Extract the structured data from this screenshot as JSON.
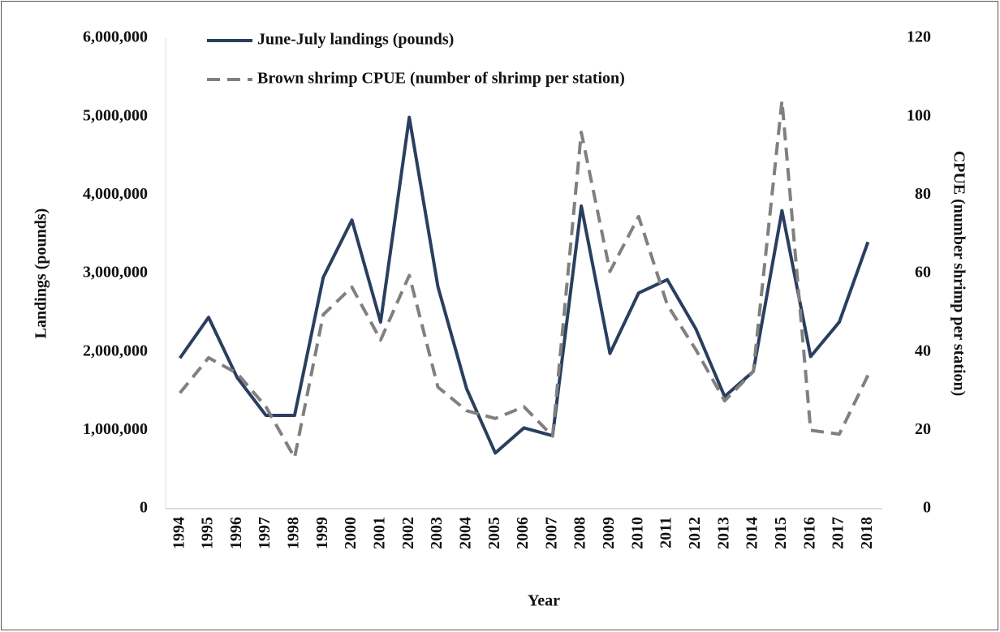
{
  "chart_data": {
    "type": "line",
    "x_label": "Year",
    "y_label": "Landings (pounds)",
    "y2_label": "CPUE (number shrimp per station)",
    "categories": [
      "1994",
      "1995",
      "1996",
      "1997",
      "1998",
      "1999",
      "2000",
      "2001",
      "2002",
      "2003",
      "2004",
      "2005",
      "2006",
      "2007",
      "2008",
      "2009",
      "2010",
      "2011",
      "2012",
      "2013",
      "2014",
      "2015",
      "2016",
      "2017",
      "2018"
    ],
    "series": [
      {
        "name": "June-July landings (pounds)",
        "color": "#2a3f5f",
        "dash": "solid",
        "values": [
          1920000,
          2440000,
          1670000,
          1190000,
          1190000,
          2950000,
          3680000,
          2380000,
          4990000,
          2830000,
          1530000,
          710000,
          1030000,
          930000,
          3860000,
          1980000,
          2750000,
          2920000,
          2290000,
          1430000,
          1750000,
          3800000,
          1940000,
          2380000,
          3400000
        ]
      },
      {
        "name": "Brown shrimp CPUE (number of shrimp per station)",
        "color": "#808080",
        "dash": "dashed",
        "axis": "y2",
        "values": [
          29.5,
          38.5,
          34.5,
          26,
          13,
          49.5,
          56.5,
          43,
          59.5,
          31,
          25,
          23,
          26,
          18.5,
          96,
          60.5,
          74.5,
          52,
          40.5,
          27.5,
          35,
          104,
          20,
          19,
          34
        ]
      }
    ],
    "ylim": [
      0,
      6000000
    ],
    "yticks": [
      0,
      {
        "value": 1000000,
        "label": "1,000,000"
      },
      {
        "value": 2000000,
        "label": "2,000,000"
      },
      {
        "value": 3000000,
        "label": "3,000,000"
      },
      {
        "value": 4000000,
        "label": "4,000,000"
      },
      {
        "value": 5000000,
        "label": "5,000,000"
      },
      {
        "value": 6000000,
        "label": "6,000,000"
      }
    ],
    "y2lim": [
      0,
      120
    ],
    "y2ticks": [
      0,
      20,
      40,
      60,
      80,
      100,
      120
    ],
    "grid": false,
    "legend": "top-left"
  }
}
